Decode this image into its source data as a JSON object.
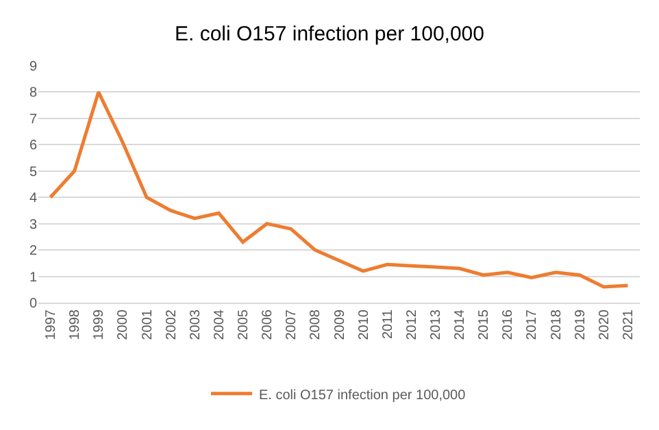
{
  "chart_data": {
    "type": "line",
    "title": "E. coli O157 infection per 100,000",
    "categories": [
      "1997",
      "1998",
      "1999",
      "2000",
      "2001",
      "2002",
      "2003",
      "2004",
      "2005",
      "2006",
      "2007",
      "2008",
      "2009",
      "2010",
      "2011",
      "2012",
      "2013",
      "2014",
      "2015",
      "2016",
      "2017",
      "2018",
      "2019",
      "2020",
      "2021"
    ],
    "series": [
      {
        "name": "E. coli O157 infection per 100,000",
        "color": "#ed7d31",
        "values": [
          4,
          5,
          8,
          6.1,
          4,
          3.5,
          3.2,
          3.4,
          2.3,
          3,
          2.8,
          2,
          1.6,
          1.2,
          1.45,
          1.4,
          1.35,
          1.3,
          1.05,
          1.15,
          0.95,
          1.15,
          1.05,
          0.6,
          0.65
        ]
      }
    ],
    "ylim": [
      0,
      9
    ],
    "yticks": [
      0,
      1,
      2,
      3,
      4,
      5,
      6,
      7,
      8,
      9
    ],
    "grid": "y",
    "legend": "bottom",
    "marker": "none",
    "line_style": "solid"
  }
}
